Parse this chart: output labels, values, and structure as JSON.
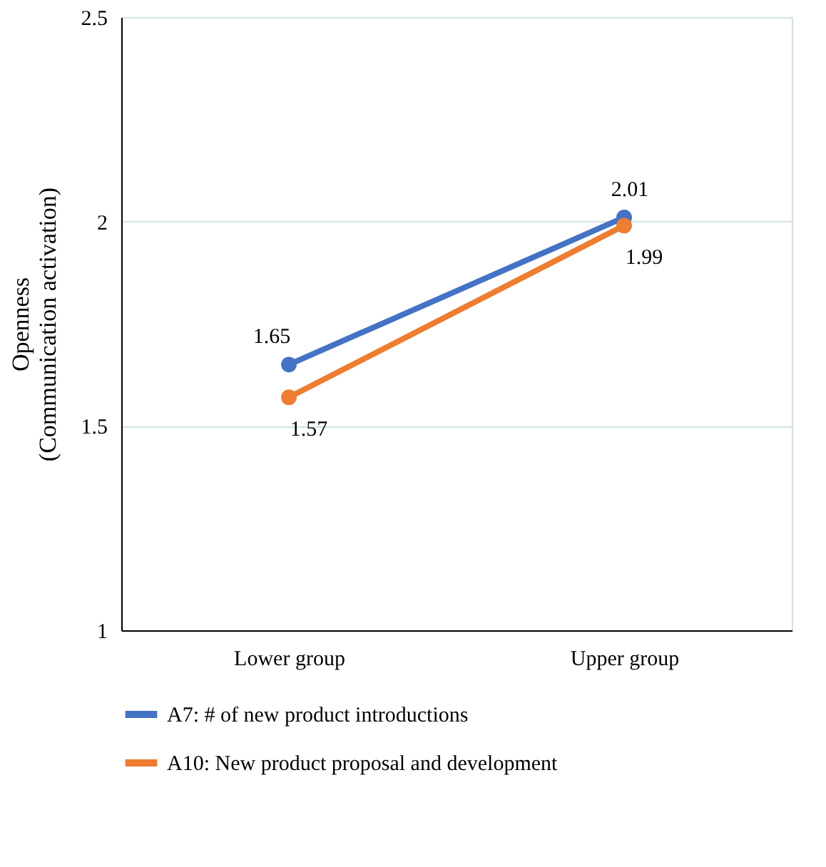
{
  "chart_data": {
    "type": "line",
    "ylabel": "Openness\n(Communication activation)",
    "categories": [
      "Lower group",
      "Upper group"
    ],
    "series": [
      {
        "name": "A7: # of new product  introductions",
        "color": "#4472c4",
        "values": [
          1.65,
          2.01
        ]
      },
      {
        "name": "A10: New product proposal and development",
        "color": "#ed7d31",
        "values": [
          1.57,
          1.99
        ]
      }
    ],
    "ylim": [
      1,
      2.5
    ],
    "yticks": [
      1,
      1.5,
      2,
      2.5
    ],
    "grid": "y",
    "legend": "bottom",
    "marker": "circle",
    "line_style": "solid",
    "data_labels": true
  }
}
